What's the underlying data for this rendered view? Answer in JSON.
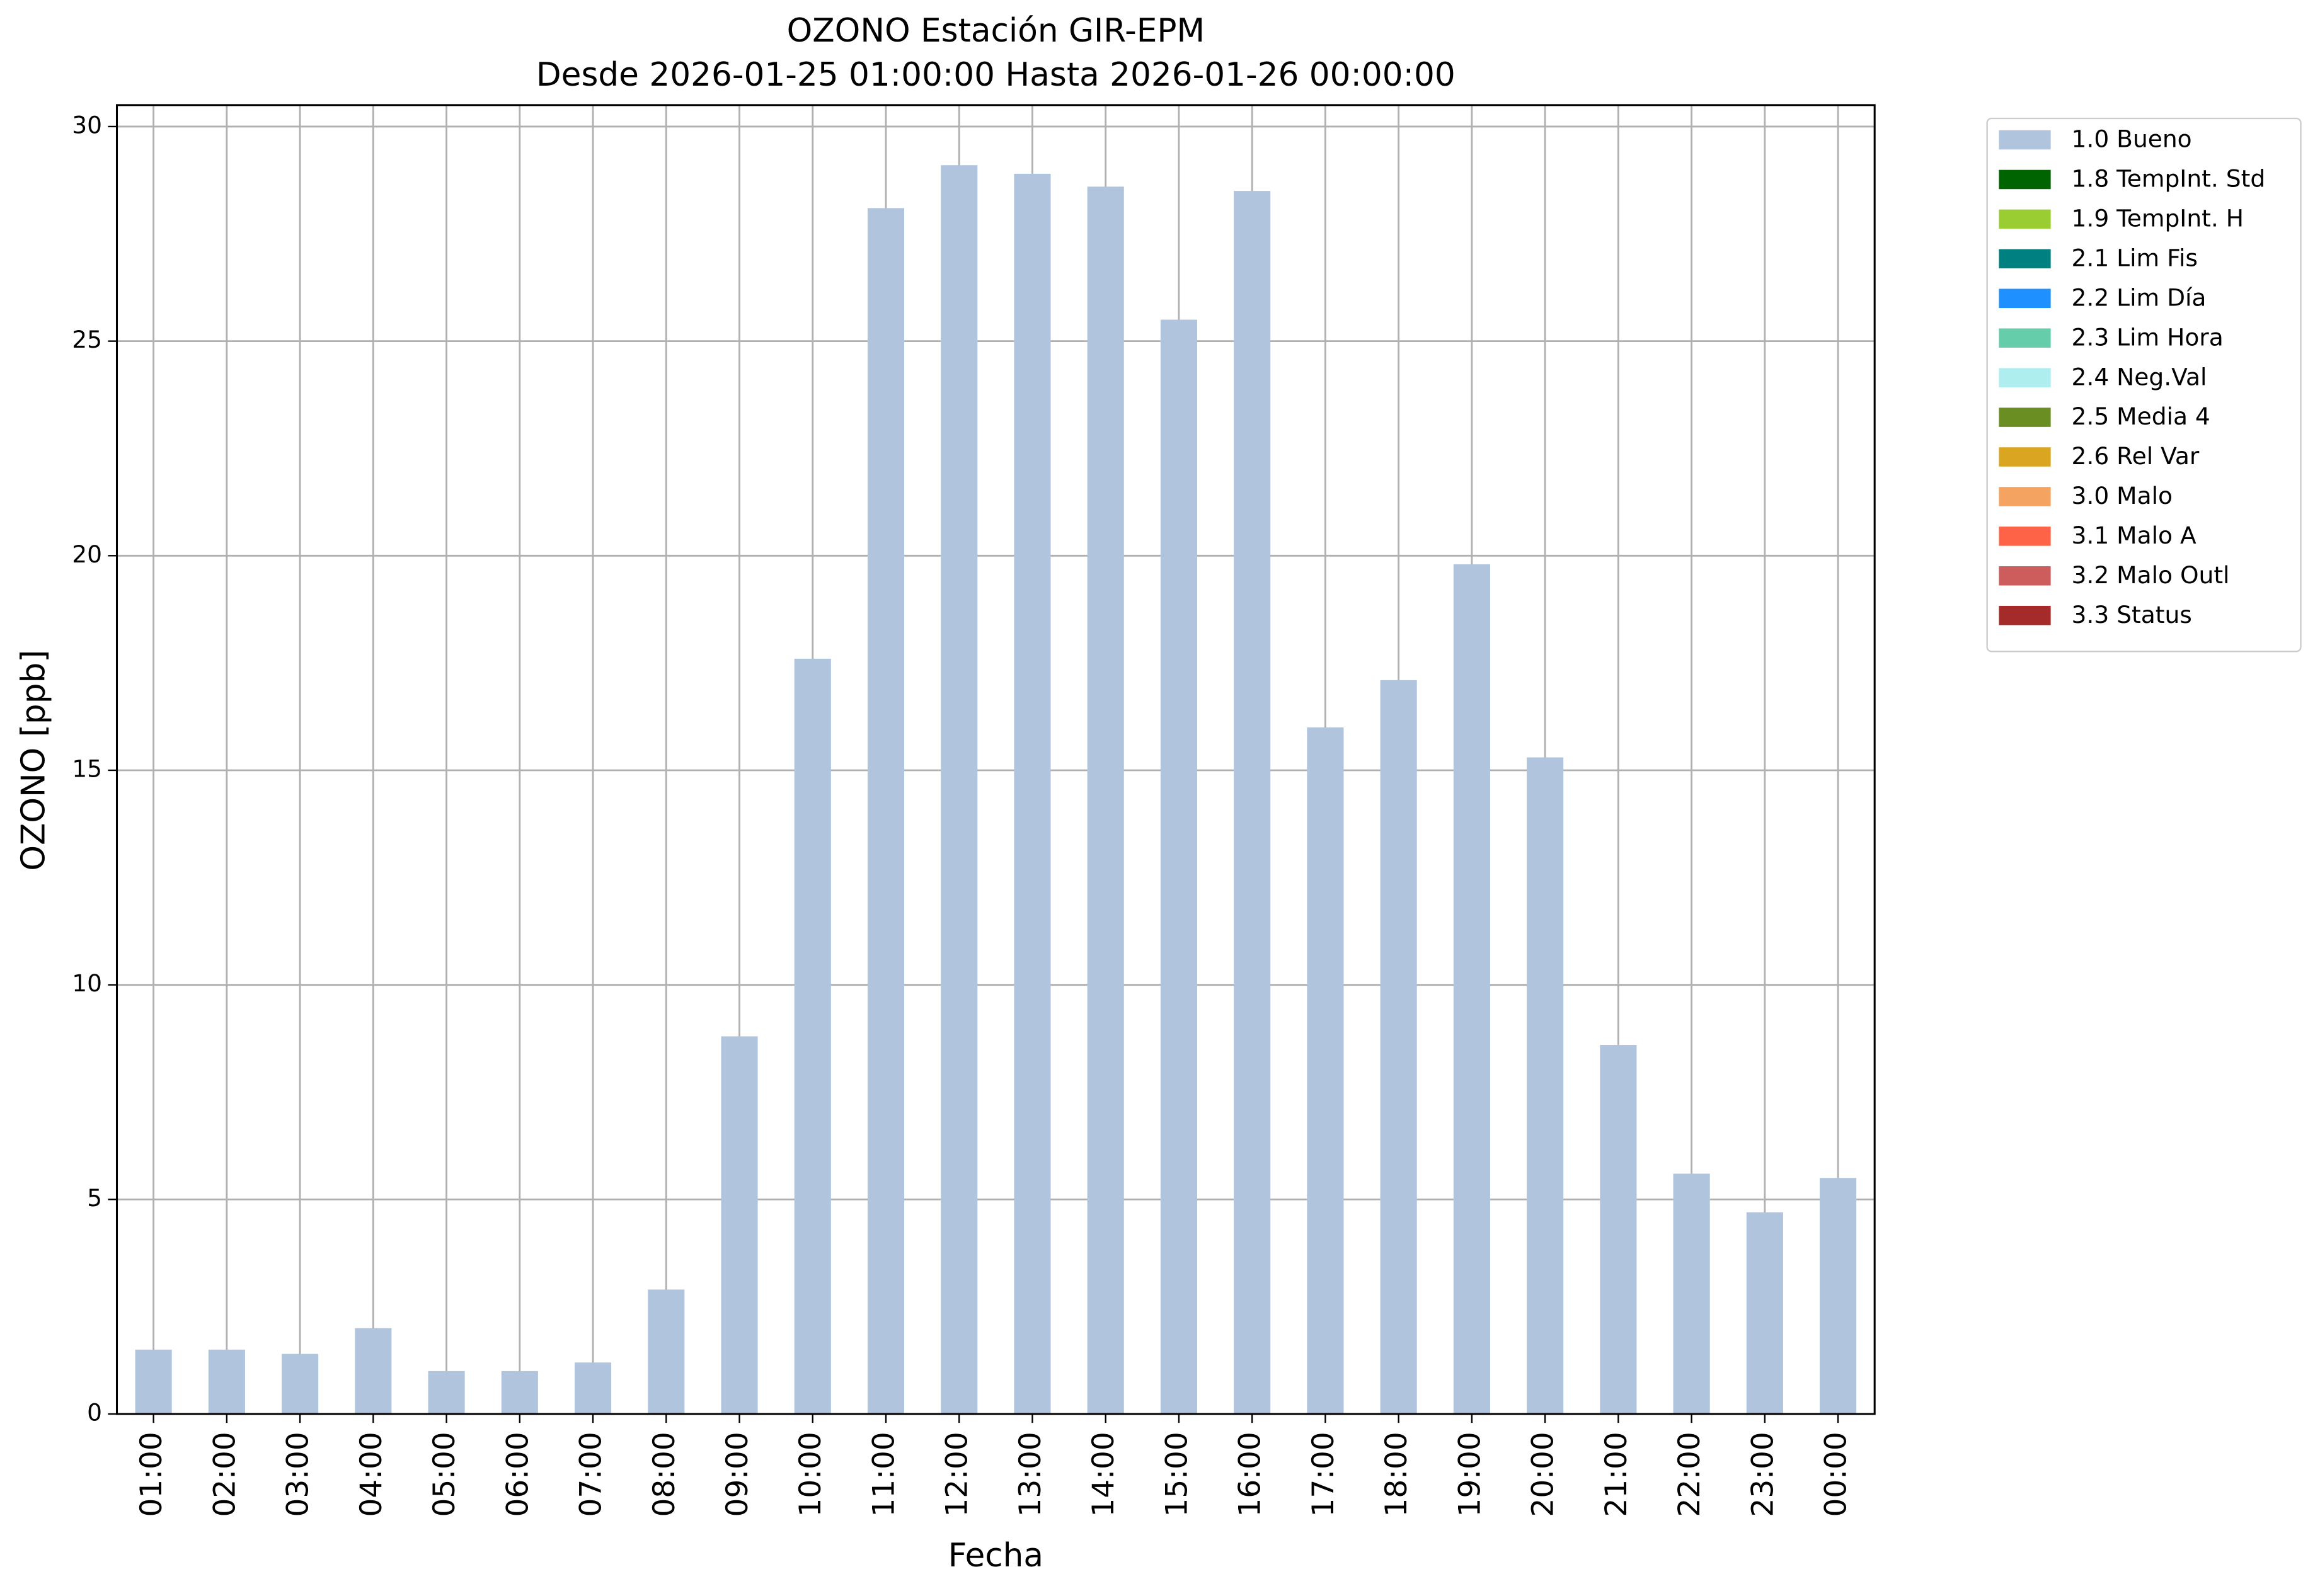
{
  "chart_data": {
    "type": "bar",
    "stacked": true,
    "title": "OZONO Estación GIR-EPM",
    "subtitle": "Desde 2026-01-25 01:00:00 Hasta 2026-01-26 00:00:00",
    "x_label": "Fecha",
    "y_label": "OZONO [ppb]",
    "categories": [
      "01:00",
      "02:00",
      "03:00",
      "04:00",
      "05:00",
      "06:00",
      "07:00",
      "08:00",
      "09:00",
      "10:00",
      "11:00",
      "12:00",
      "13:00",
      "14:00",
      "15:00",
      "16:00",
      "17:00",
      "18:00",
      "19:00",
      "20:00",
      "21:00",
      "22:00",
      "23:00",
      "00:00"
    ],
    "series": [
      {
        "name": "1.0 Bueno",
        "color": "#b0c4de",
        "values": [
          1.5,
          1.5,
          1.4,
          2.0,
          1.0,
          1.0,
          1.2,
          2.9,
          8.8,
          17.6,
          28.1,
          29.1,
          28.9,
          28.6,
          25.5,
          28.5,
          16.0,
          17.1,
          19.8,
          15.3,
          8.6,
          5.6,
          4.7,
          5.5
        ]
      },
      {
        "name": "1.8 TempInt. Std",
        "color": "#006400",
        "values": [
          0,
          0,
          0,
          0,
          0,
          0,
          0,
          0,
          0,
          0,
          0,
          0,
          0,
          0,
          0,
          0,
          0,
          0,
          0,
          0,
          0,
          0,
          0,
          0
        ]
      },
      {
        "name": "1.9 TempInt. H",
        "color": "#9acd32",
        "values": [
          0,
          0,
          0,
          0,
          0,
          0,
          0,
          0,
          0,
          0,
          0,
          0,
          0,
          0,
          0,
          0,
          0,
          0,
          0,
          0,
          0,
          0,
          0,
          0
        ]
      },
      {
        "name": "2.1 Lim Fis",
        "color": "#008080",
        "values": [
          0,
          0,
          0,
          0,
          0,
          0,
          0,
          0,
          0,
          0,
          0,
          0,
          0,
          0,
          0,
          0,
          0,
          0,
          0,
          0,
          0,
          0,
          0,
          0
        ]
      },
      {
        "name": "2.2 Lim Día",
        "color": "#1e90ff",
        "values": [
          0,
          0,
          0,
          0,
          0,
          0,
          0,
          0,
          0,
          0,
          0,
          0,
          0,
          0,
          0,
          0,
          0,
          0,
          0,
          0,
          0,
          0,
          0,
          0
        ]
      },
      {
        "name": "2.3 Lim Hora",
        "color": "#66cdaa",
        "values": [
          0,
          0,
          0,
          0,
          0,
          0,
          0,
          0,
          0,
          0,
          0,
          0,
          0,
          0,
          0,
          0,
          0,
          0,
          0,
          0,
          0,
          0,
          0,
          0
        ]
      },
      {
        "name": "2.4 Neg.Val",
        "color": "#afeeee",
        "values": [
          0,
          0,
          0,
          0,
          0,
          0,
          0,
          0,
          0,
          0,
          0,
          0,
          0,
          0,
          0,
          0,
          0,
          0,
          0,
          0,
          0,
          0,
          0,
          0
        ]
      },
      {
        "name": "2.5 Media 4",
        "color": "#6b8e23",
        "values": [
          0,
          0,
          0,
          0,
          0,
          0,
          0,
          0,
          0,
          0,
          0,
          0,
          0,
          0,
          0,
          0,
          0,
          0,
          0,
          0,
          0,
          0,
          0,
          0
        ]
      },
      {
        "name": "2.6 Rel Var",
        "color": "#daa520",
        "values": [
          0,
          0,
          0,
          0,
          0,
          0,
          0,
          0,
          0,
          0,
          0,
          0,
          0,
          0,
          0,
          0,
          0,
          0,
          0,
          0,
          0,
          0,
          0,
          0
        ]
      },
      {
        "name": "3.0 Malo",
        "color": "#f4a460",
        "values": [
          0,
          0,
          0,
          0,
          0,
          0,
          0,
          0,
          0,
          0,
          0,
          0,
          0,
          0,
          0,
          0,
          0,
          0,
          0,
          0,
          0,
          0,
          0,
          0
        ]
      },
      {
        "name": "3.1 Malo A",
        "color": "#ff6347",
        "values": [
          0,
          0,
          0,
          0,
          0,
          0,
          0,
          0,
          0,
          0,
          0,
          0,
          0,
          0,
          0,
          0,
          0,
          0,
          0,
          0,
          0,
          0,
          0,
          0
        ]
      },
      {
        "name": "3.2 Malo Outl",
        "color": "#cd5c5c",
        "values": [
          0,
          0,
          0,
          0,
          0,
          0,
          0,
          0,
          0,
          0,
          0,
          0,
          0,
          0,
          0,
          0,
          0,
          0,
          0,
          0,
          0,
          0,
          0,
          0
        ]
      },
      {
        "name": "3.3 Status",
        "color": "#a52a2a",
        "values": [
          0,
          0,
          0,
          0,
          0,
          0,
          0,
          0,
          0,
          0,
          0,
          0,
          0,
          0,
          0,
          0,
          0,
          0,
          0,
          0,
          0,
          0,
          0,
          0
        ]
      }
    ],
    "ylim": [
      0,
      30.5
    ],
    "yticks": [
      0,
      5,
      10,
      15,
      20,
      25,
      30
    ],
    "grid": true,
    "legend": "outside-upper-right"
  }
}
